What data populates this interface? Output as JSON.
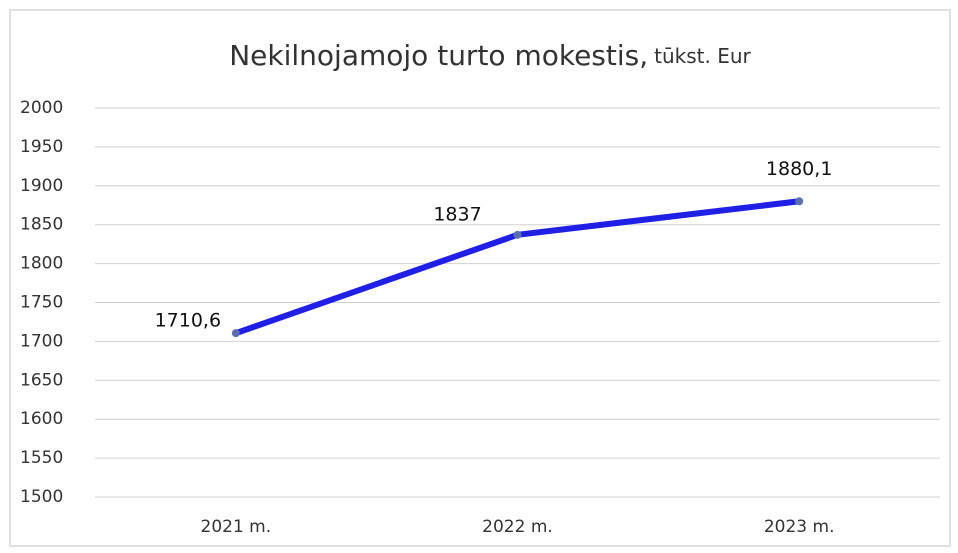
{
  "chart_data": {
    "type": "line",
    "title": "Nekilnojamojo turto mokestis,",
    "subtitle": "tūkst. Eur",
    "categories": [
      "2021 m.",
      "2022 m.",
      "2023 m."
    ],
    "series": [
      {
        "name": "Nekilnojamojo turto mokestis",
        "color": "#1f1fe6",
        "values": [
          1710.6,
          1837,
          1880.1
        ],
        "value_labels": [
          "1710,6",
          "1837",
          "1880,1"
        ]
      }
    ],
    "ylim": [
      1500,
      2000
    ],
    "yticks": [
      1500,
      1550,
      1600,
      1650,
      1700,
      1750,
      1800,
      1850,
      1900,
      1950,
      2000
    ],
    "grid": true
  }
}
